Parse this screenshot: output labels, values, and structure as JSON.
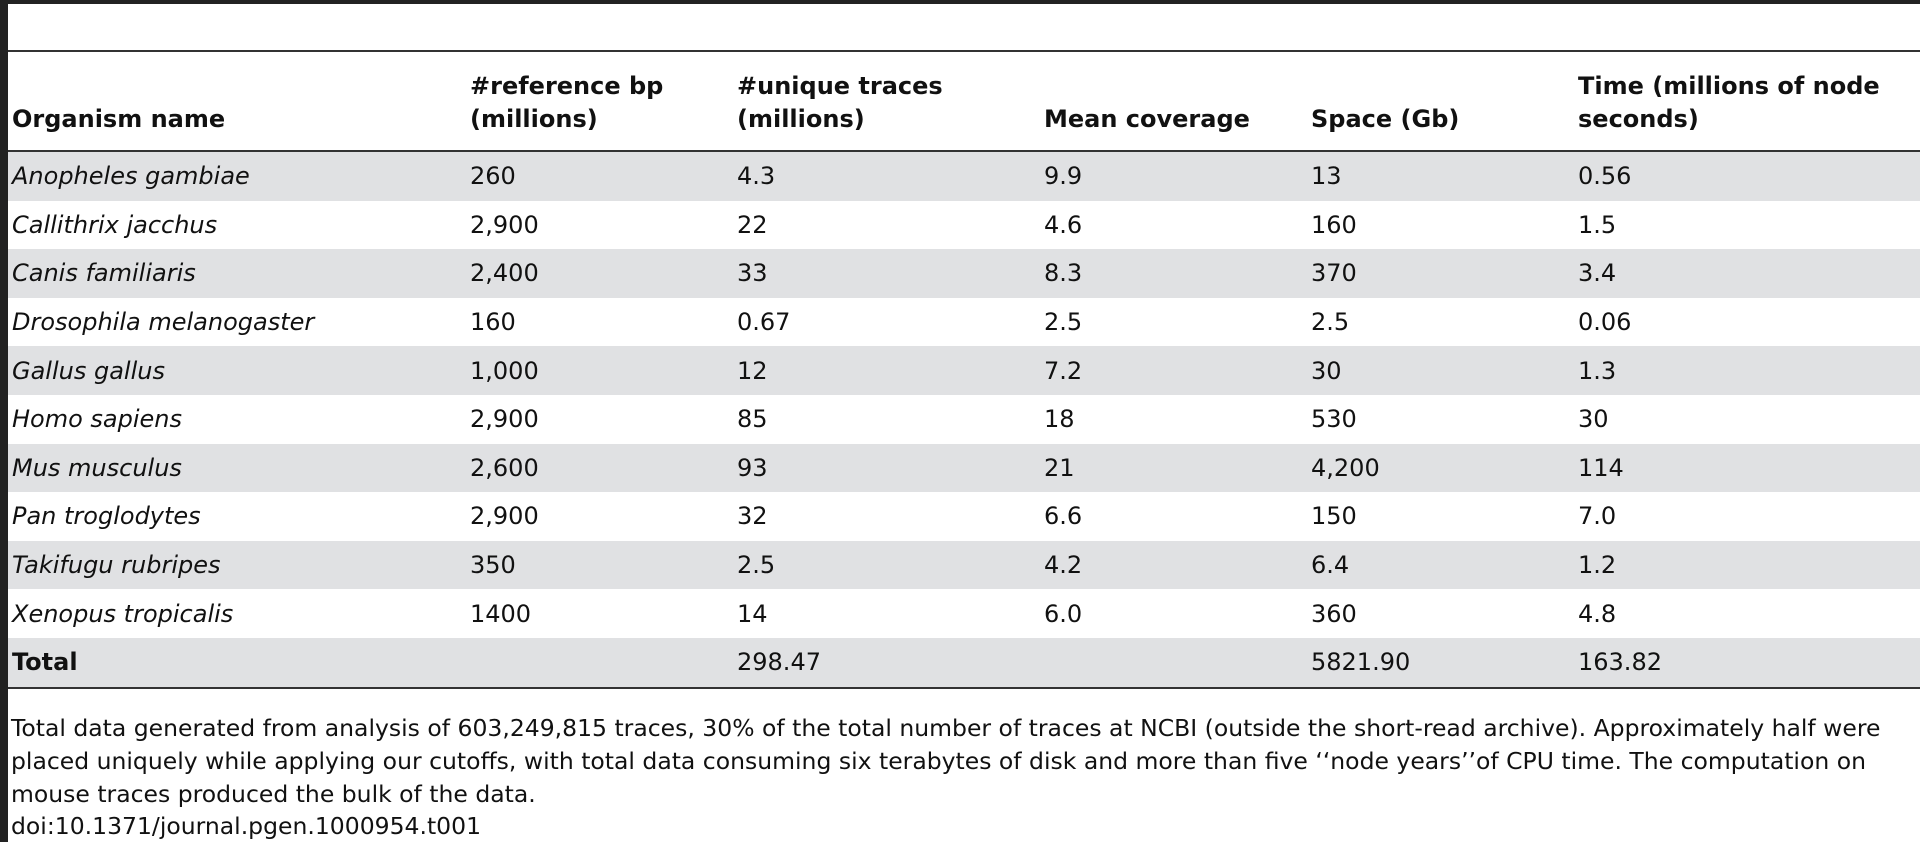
{
  "table": {
    "columns": [
      "Organism name",
      "#reference bp (millions)",
      "#unique traces (millions)",
      "Mean coverage",
      "Space (Gb)",
      "Time (millions of node seconds)"
    ],
    "rows": [
      [
        "Anopheles gambiae",
        "260",
        "4.3",
        "9.9",
        "13",
        "0.56"
      ],
      [
        "Callithrix jacchus",
        "2,900",
        "22",
        "4.6",
        "160",
        "1.5"
      ],
      [
        "Canis familiaris",
        "2,400",
        "33",
        "8.3",
        "370",
        "3.4"
      ],
      [
        "Drosophila melanogaster",
        "160",
        "0.67",
        "2.5",
        "2.5",
        "0.06"
      ],
      [
        "Gallus gallus",
        "1,000",
        "12",
        "7.2",
        "30",
        "1.3"
      ],
      [
        "Homo sapiens",
        "2,900",
        "85",
        "18",
        "530",
        "30"
      ],
      [
        "Mus musculus",
        "2,600",
        "93",
        "21",
        "4,200",
        "114"
      ],
      [
        "Pan troglodytes",
        "2,900",
        "32",
        "6.6",
        "150",
        "7.0"
      ],
      [
        "Takifugu rubripes",
        "350",
        "2.5",
        "4.2",
        "6.4",
        "1.2"
      ],
      [
        "Xenopus tropicalis",
        "1400",
        "14",
        "6.0",
        "360",
        "4.8"
      ]
    ],
    "total": [
      "Total",
      "",
      "298.47",
      "",
      "5821.90",
      "163.82"
    ]
  },
  "footnote": "Total data generated from analysis of 603,249,815 traces, 30% of the total number of traces at NCBI (outside the short-read archive). Approximately half were placed uniquely while applying our cutoffs, with total data consuming six terabytes of disk and more than five ‘‘node years’’of CPU time. The computation on mouse traces produced the bulk of the data.",
  "doi": "doi:10.1371/journal.pgen.1000954.t001",
  "colors": {
    "row_shade": "#e0e1e3",
    "rule": "#333333",
    "text": "#111111"
  }
}
